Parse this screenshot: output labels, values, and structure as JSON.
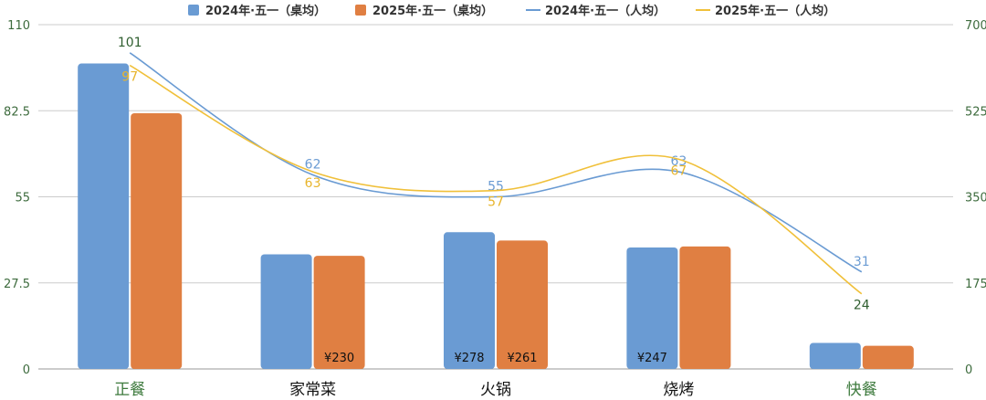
{
  "chart_data": {
    "type": "bar",
    "categories": [
      "正餐",
      "家常菜",
      "火锅",
      "烧烤",
      "快餐"
    ],
    "category_colors": [
      "#3d7a3d",
      "#111111",
      "#111111",
      "#111111",
      "#3d7a3d"
    ],
    "left_axis": {
      "min": 0,
      "max": 110,
      "ticks": [
        "0",
        "27.5",
        "55",
        "82.5",
        "110"
      ],
      "tick_values": [
        0,
        27.5,
        55,
        82.5,
        110
      ]
    },
    "right_axis": {
      "min": 0,
      "max": 700,
      "ticks": [
        "0",
        "175",
        "350",
        "525",
        "700"
      ],
      "tick_values": [
        0,
        175,
        350,
        525,
        700
      ]
    },
    "grid": true,
    "legend_position": "top",
    "bar_series": [
      {
        "name": "2024年·五一（桌均）",
        "color": "#6a9bd3",
        "values": [
          621,
          233,
          278,
          247,
          53
        ],
        "bar_labels": [
          "",
          "",
          "¥278",
          "¥247",
          ""
        ]
      },
      {
        "name": "2025年·五一（桌均）",
        "color": "#e07f42",
        "values": [
          520,
          230,
          261,
          249,
          47
        ],
        "bar_labels": [
          "",
          "¥230",
          "¥261",
          "",
          ""
        ]
      }
    ],
    "line_series": [
      {
        "name": "2024年·五一（人均）",
        "color": "#6a9bd3",
        "values": [
          101,
          62,
          55,
          63,
          31
        ],
        "labels": [
          "101",
          "62",
          "55",
          "63",
          "31"
        ]
      },
      {
        "name": "2025年·五一（人均）",
        "color": "#f0c03a",
        "values": [
          97,
          63,
          57,
          67,
          24
        ],
        "labels": [
          "97",
          "63",
          "57",
          "67",
          "24"
        ]
      }
    ]
  }
}
